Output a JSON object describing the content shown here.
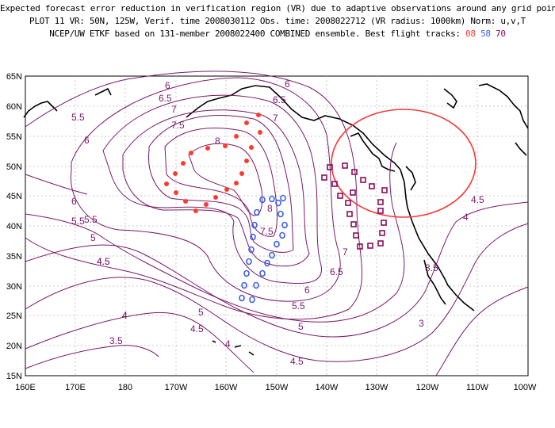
{
  "title_lines": [
    "Expected forecast error reduction in verification region (VR) due to adaptive observations around any grid point.",
    "PLOT 11 VR: 50N, 125W, Verif. time 2008030112 Obs. time: 2008022712 (VR radius: 1000km) Norm: u,v,T",
    "NCEP/UW ETKF based on 131-member 2008022400 COMBINED ensemble.  Best flight tracks:"
  ],
  "flight_tracks": [
    {
      "label": "08",
      "color": "#ff3b30"
    },
    {
      "label": "58",
      "color": "#3d5ce8"
    },
    {
      "label": "70",
      "color": "#8a0e5a"
    }
  ],
  "lat_ticks": [
    "65N",
    "60N",
    "55N",
    "50N",
    "45N",
    "40N",
    "35N",
    "30N",
    "25N",
    "20N",
    "15N"
  ],
  "lon_ticks": [
    "160E",
    "170E",
    "180",
    "170W",
    "160W",
    "150W",
    "140W",
    "130W",
    "120W",
    "110W",
    "100W"
  ],
  "contour_labels": [
    "6",
    "6.5",
    "7",
    "7.5",
    "8",
    "5.5",
    "6",
    "6.5",
    "7",
    "5.5",
    "6",
    "4.5",
    "6",
    "5.5",
    "5",
    "8",
    "7.5",
    "7",
    "6.5",
    "6",
    "5.5",
    "5",
    "4.5",
    "4",
    "4.5",
    "4",
    "3.5",
    "5",
    "4.5",
    "4",
    "4",
    "3.5",
    "3",
    "4.5"
  ],
  "colors": {
    "contour": "#7a1a6a",
    "vr_circle": "#ff3333",
    "track_08": "#ff3b30",
    "track_58": "#3d5ce8",
    "track_70": "#8a0e5a",
    "grid": "#bbbbbb"
  }
}
